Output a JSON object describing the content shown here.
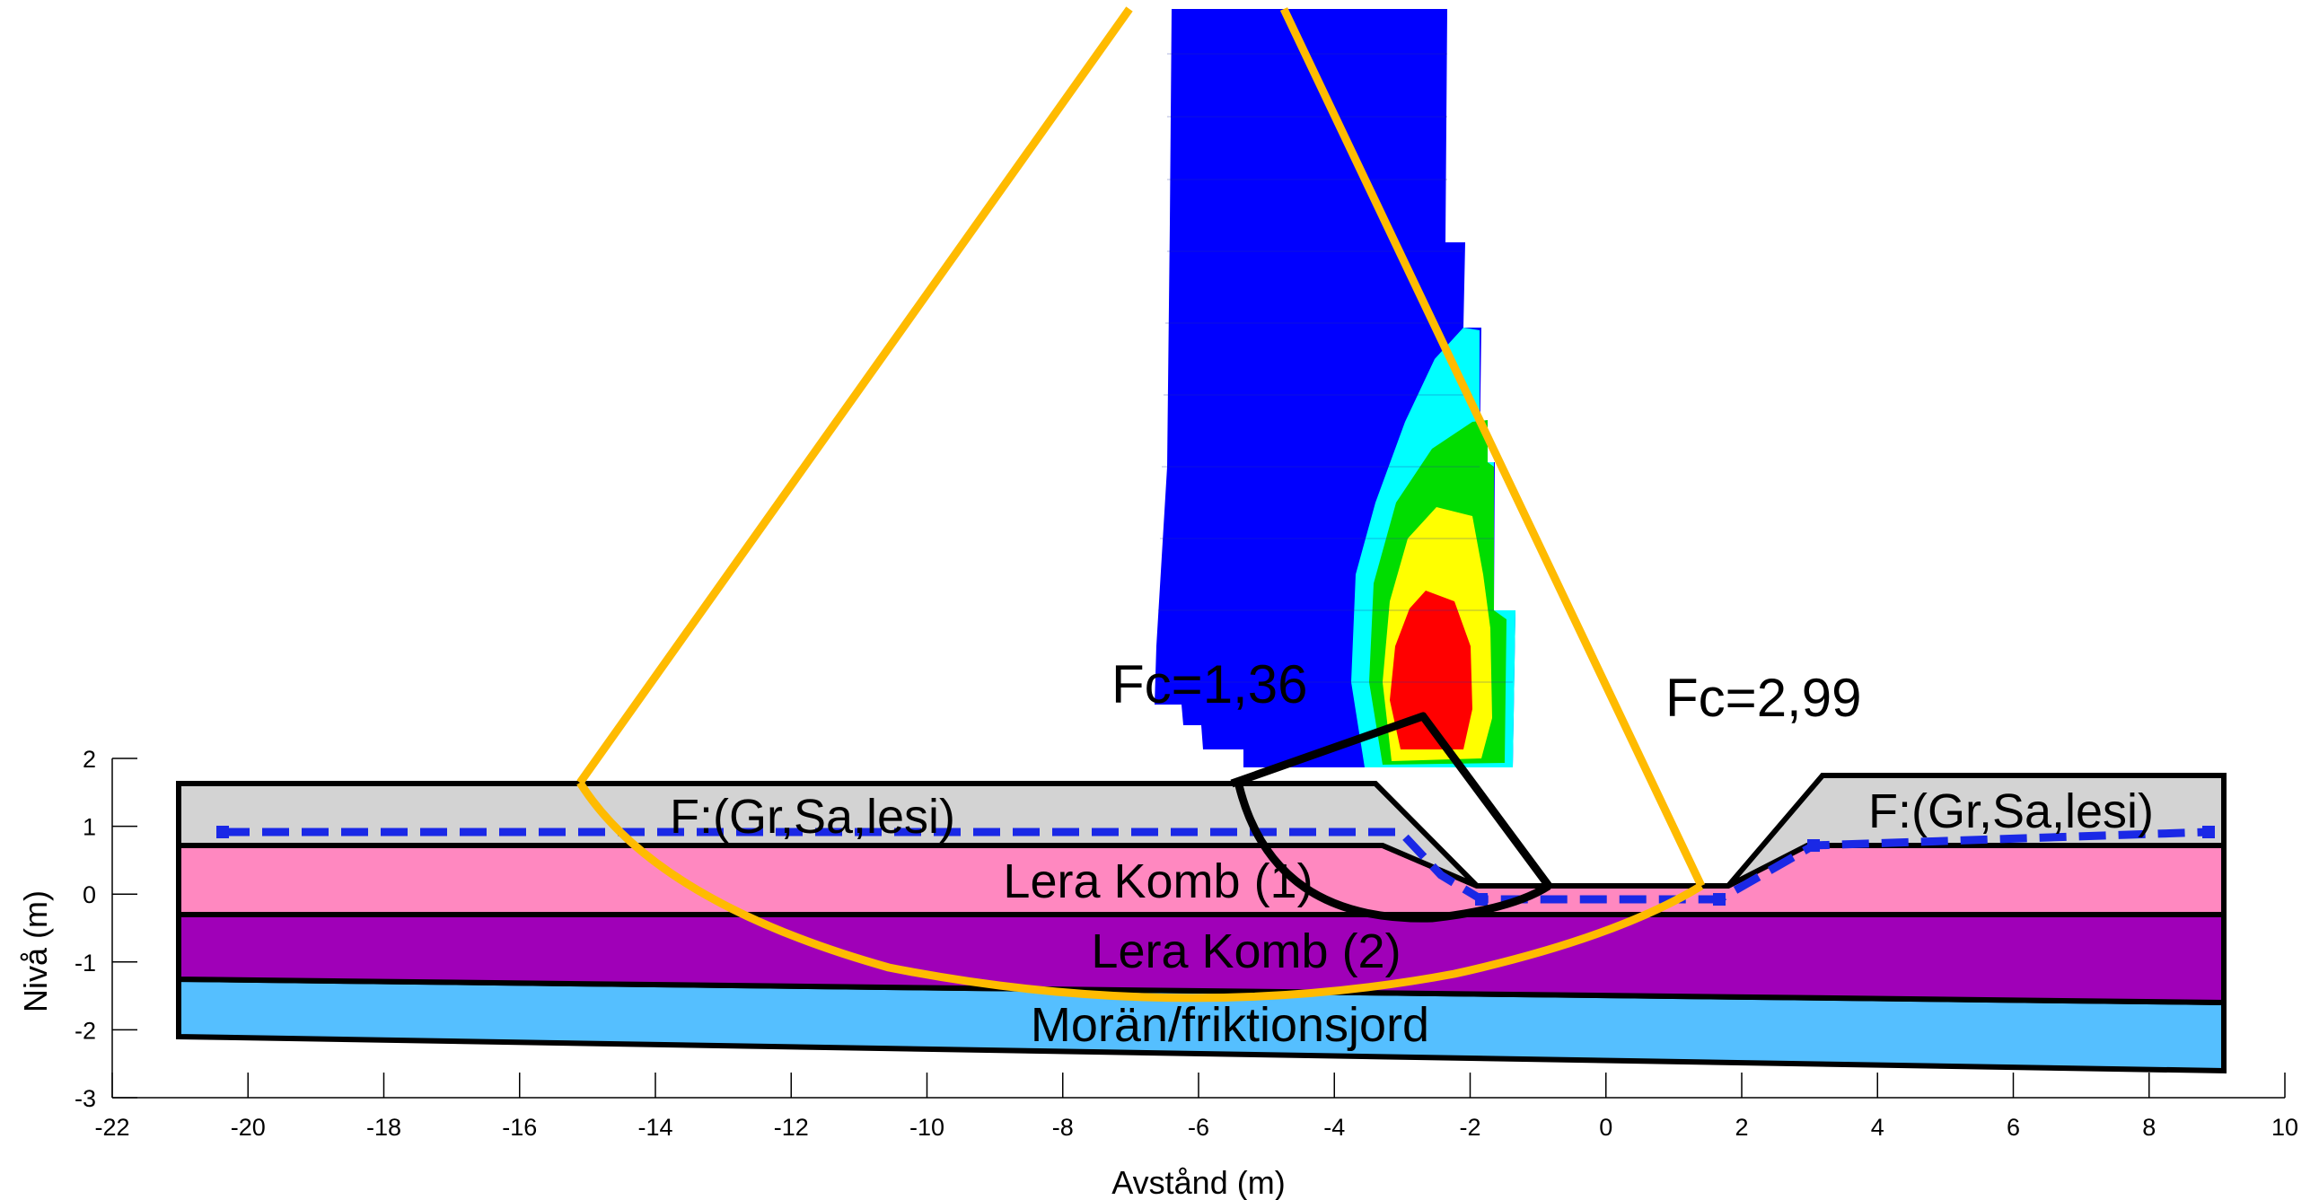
{
  "axes": {
    "xlabel": "Avstånd (m)",
    "ylabel": "Nivå (m)",
    "xlim": [
      -22,
      10
    ],
    "ylim": [
      -3,
      2
    ],
    "xticks": [
      "-22",
      "-20",
      "-18",
      "-16",
      "-14",
      "-12",
      "-10",
      "-8",
      "-6",
      "-4",
      "-2",
      "0",
      "2",
      "4",
      "6",
      "8",
      "10"
    ],
    "yticks": [
      "2",
      "1",
      "0",
      "-1",
      "-2",
      "-3"
    ]
  },
  "layers": [
    {
      "id": "fill-left",
      "label": "F:(Gr,Sa,lesi)",
      "color": "#d3d3d3"
    },
    {
      "id": "fill-right",
      "label": "F:(Gr,Sa,lesi)",
      "color": "#d3d3d3"
    },
    {
      "id": "clay-1",
      "label": "Lera Komb (1)",
      "color": "#ff88c0"
    },
    {
      "id": "clay-2",
      "label": "Lera Komb (2)",
      "color": "#a000b8"
    },
    {
      "id": "moraine",
      "label": "Morän/friktionsjord",
      "color": "#55bfff"
    }
  ],
  "safety_factors": [
    {
      "label": "Fc=1,36",
      "surface_color": "#000000"
    },
    {
      "label": "Fc=2,99",
      "surface_color": "#ffbb00"
    }
  ],
  "groundwater": {
    "color": "#1a28e6"
  },
  "contour_colors": [
    "#0000ff",
    "#00ffff",
    "#00dd00",
    "#ffff00",
    "#ff0000"
  ]
}
